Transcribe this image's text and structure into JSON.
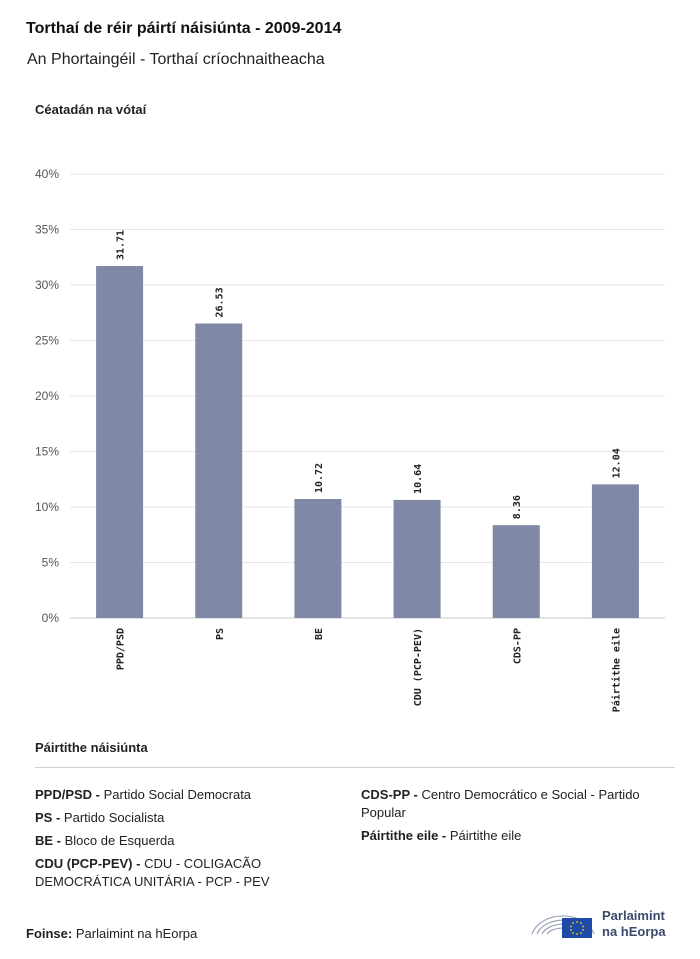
{
  "header": {
    "title": "Torthaí de réir páirtí náisiúnta - 2009-2014",
    "subtitle": "An Phortaingéil - Torthaí críochnaitheacha"
  },
  "chart_data": {
    "type": "bar",
    "ylabel": "Céatadán na vótaí",
    "categories": [
      "PPD/PSD",
      "PS",
      "BE",
      "CDU (PCP-PEV)",
      "CDS-PP",
      "Páirtithe eile"
    ],
    "values": [
      31.71,
      26.53,
      10.72,
      10.64,
      8.36,
      12.04
    ],
    "value_labels": [
      "31.71",
      "26.53",
      "10.72",
      "10.64",
      "8.36",
      "12.04"
    ],
    "ylim": [
      0,
      40
    ],
    "yticks": [
      0,
      5,
      10,
      15,
      20,
      25,
      30,
      35,
      40
    ],
    "ytick_labels": [
      "0%",
      "5%",
      "10%",
      "15%",
      "20%",
      "25%",
      "30%",
      "35%",
      "40%"
    ],
    "grid": true,
    "bar_color": "#7f89a5"
  },
  "legend": {
    "title": "Páirtithe náisiúnta",
    "left": [
      {
        "abbr": "PPD/PSD -",
        "name": "Partido Social Democrata"
      },
      {
        "abbr": "PS -",
        "name": "Partido Socialista"
      },
      {
        "abbr": "BE -",
        "name": "Bloco de Esquerda"
      },
      {
        "abbr": "CDU (PCP-PEV) -",
        "name": "CDU - COLIGACÃO DEMOCRÁTICA UNITÁRIA - PCP - PEV"
      }
    ],
    "right": [
      {
        "abbr": "CDS-PP -",
        "name": "Centro Democrático e Social - Partido Popular"
      },
      {
        "abbr": "Páirtithe eile -",
        "name": "Páirtithe eile"
      }
    ]
  },
  "source": {
    "label": "Foinse:",
    "text": "Parlaimint na hEorpa"
  },
  "logo": {
    "line1": "Parlaimint",
    "line2": "na hEorpa",
    "color": "#3a4a6b",
    "flag_color": "#1f4aa8"
  }
}
